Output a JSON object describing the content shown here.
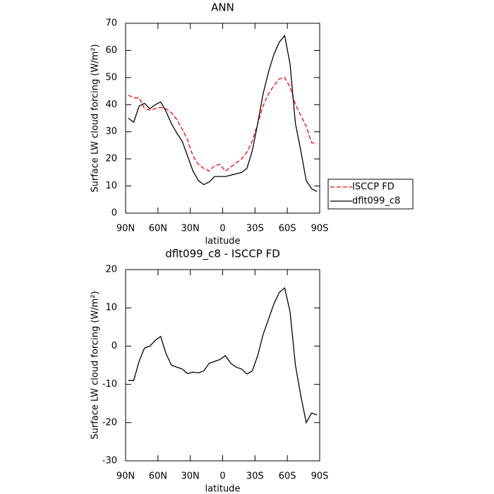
{
  "chart_data": [
    {
      "type": "line",
      "title": "ANN",
      "xlabel": "latitude",
      "ylabel": "Surface LW cloud forcing (W/m²)",
      "x": [
        87.5,
        82.5,
        77.5,
        72.5,
        67.5,
        62.5,
        57.5,
        52.5,
        47.5,
        42.5,
        37.5,
        32.5,
        27.5,
        22.5,
        17.5,
        12.5,
        7.5,
        2.5,
        -2.5,
        -7.5,
        -12.5,
        -17.5,
        -22.5,
        -27.5,
        -32.5,
        -37.5,
        -42.5,
        -47.5,
        -52.5,
        -57.5,
        -62.5,
        -67.5,
        -72.5,
        -77.5,
        -82.5,
        -87.5
      ],
      "series": [
        {
          "name": "ISCCP FD",
          "color": "#ff0000",
          "linestyle": "dashed",
          "values": [
            43.5,
            42.5,
            42.5,
            38.5,
            38,
            38.5,
            39,
            38.5,
            37,
            34.5,
            31,
            27,
            21,
            18,
            16.5,
            15.5,
            17.5,
            18,
            15.5,
            17,
            18.5,
            20,
            22.5,
            26.5,
            33,
            39.5,
            44,
            47,
            49.5,
            50,
            46.5,
            40,
            36,
            32,
            26,
            25.5
          ]
        },
        {
          "name": "dflt099_c8",
          "color": "#000000",
          "linestyle": "solid",
          "values": [
            35,
            33.5,
            39.5,
            40.5,
            38.5,
            40,
            41,
            37.5,
            33,
            29.5,
            26.5,
            21,
            15.5,
            12,
            10.5,
            11.5,
            13.5,
            13.5,
            13.5,
            14,
            14.5,
            15,
            16.5,
            23,
            33,
            44,
            52,
            58.5,
            63,
            65.5,
            55,
            33,
            23,
            12,
            9,
            8
          ]
        }
      ],
      "xlim": [
        90,
        -90
      ],
      "xticks": [
        {
          "value": 90,
          "label": "90N"
        },
        {
          "value": 60,
          "label": "60N"
        },
        {
          "value": 30,
          "label": "30N"
        },
        0,
        {
          "value": -30,
          "label": "30S"
        },
        {
          "value": -60,
          "label": "60S"
        },
        {
          "value": -90,
          "label": "90S"
        }
      ],
      "ylim": [
        0,
        70
      ],
      "yticks": [
        0,
        10,
        20,
        30,
        40,
        50,
        60,
        70
      ],
      "legend": "right"
    },
    {
      "type": "line",
      "title": "dflt099_c8 - ISCCP FD",
      "xlabel": "latitude",
      "ylabel": "Surface LW cloud forcing (W/m²)",
      "x": [
        87.5,
        82.5,
        77.5,
        72.5,
        67.5,
        62.5,
        57.5,
        52.5,
        47.5,
        42.5,
        37.5,
        32.5,
        27.5,
        22.5,
        17.5,
        12.5,
        7.5,
        2.5,
        -2.5,
        -7.5,
        -12.5,
        -17.5,
        -22.5,
        -27.5,
        -32.5,
        -37.5,
        -42.5,
        -47.5,
        -52.5,
        -57.5,
        -62.5,
        -67.5,
        -72.5,
        -77.5,
        -82.5,
        -87.5
      ],
      "series": [
        {
          "color": "#000000",
          "linestyle": "solid",
          "values": [
            -9,
            -9,
            -4,
            -0.5,
            0,
            1.5,
            2.5,
            -2,
            -5,
            -5.5,
            -6,
            -7.2,
            -6.8,
            -7,
            -6.5,
            -4.5,
            -4,
            -3.5,
            -2.5,
            -4.5,
            -5.5,
            -6,
            -7.3,
            -6.5,
            -2.5,
            3,
            7,
            11,
            14,
            15.2,
            9,
            -5,
            -13,
            -20,
            -17.5,
            -18
          ]
        }
      ],
      "xlim": [
        90,
        -90
      ],
      "xticks": [
        {
          "value": 90,
          "label": "90N"
        },
        {
          "value": 60,
          "label": "60N"
        },
        {
          "value": 30,
          "label": "30N"
        },
        0,
        {
          "value": -30,
          "label": "30S"
        },
        {
          "value": -60,
          "label": "60S"
        },
        {
          "value": -90,
          "label": "90S"
        }
      ],
      "ylim": [
        -30,
        20
      ],
      "yticks": [
        -30,
        -20,
        -10,
        0,
        10,
        20
      ]
    }
  ]
}
